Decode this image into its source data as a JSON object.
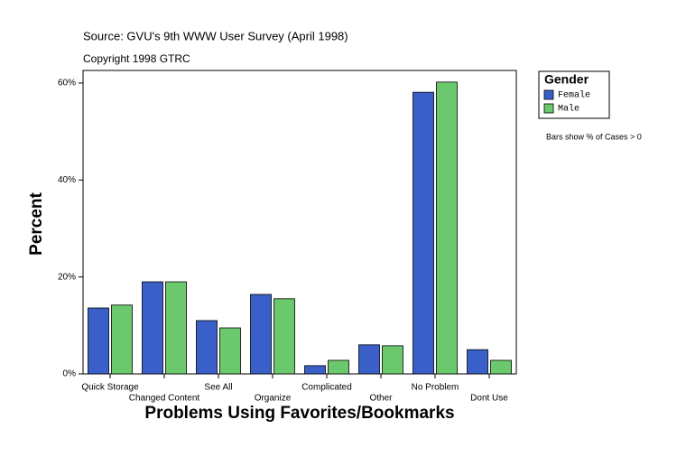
{
  "chart_data": {
    "type": "bar",
    "source": "Source: GVU's 9th WWW User Survey (April 1998)",
    "copyright": "Copyright 1998 GTRC",
    "x_label": "Problems Using Favorites/Bookmarks",
    "y_label": "Percent",
    "note": "Bars show % of Cases > 0",
    "legend_title": "Gender",
    "categories": [
      "Quick Storage",
      "Changed Content",
      "See All",
      "Organize",
      "Complicated",
      "Other",
      "No Problem",
      "Dont Use"
    ],
    "series": [
      {
        "name": "Female",
        "color": "#3a5fc8",
        "values": [
          13.6,
          19.0,
          11.0,
          16.4,
          1.7,
          6.0,
          58.1,
          5.0
        ]
      },
      {
        "name": "Male",
        "color": "#6cc86c",
        "values": [
          14.2,
          19.0,
          9.5,
          15.5,
          2.8,
          5.8,
          60.2,
          2.8
        ]
      }
    ],
    "ylim": [
      0,
      62.6
    ],
    "yticks": [
      {
        "value": 0,
        "label": "0%"
      },
      {
        "value": 20,
        "label": "20%"
      },
      {
        "value": 40,
        "label": "40%"
      },
      {
        "value": 60,
        "label": "60%"
      }
    ]
  }
}
